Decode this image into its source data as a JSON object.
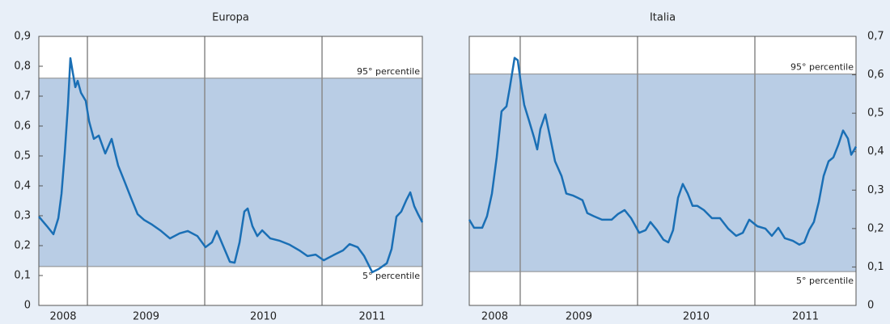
{
  "chart_data": [
    {
      "type": "line",
      "title": "Europa",
      "color": "#1a6fb5",
      "band_color": "#b9cde5",
      "yaxis_side": "left",
      "xlim": [
        2008.586,
        2011.855
      ],
      "xticks": [
        2008,
        2009,
        2010,
        2011
      ],
      "ylim": [
        0,
        0.9
      ],
      "yticks": [
        0,
        {
          "value": 0.1,
          "label": "0,1"
        },
        {
          "value": 0.2,
          "label": "0,2"
        },
        {
          "value": 0.3,
          "label": "0,3"
        },
        {
          "value": 0.4,
          "label": "0,4"
        },
        {
          "value": 0.5,
          "label": "0,5"
        },
        {
          "value": 0.6,
          "label": "0,6"
        },
        {
          "value": 0.7,
          "label": "0,7"
        },
        {
          "value": 0.8,
          "label": "0,8"
        },
        {
          "value": 0.9,
          "label": "0,9"
        }
      ],
      "percentiles": [
        {
          "value": 0.76,
          "label": "95° percentile"
        },
        {
          "value": 0.13,
          "label": "5° percentile"
        }
      ],
      "x": [
        2008.586,
        2008.655,
        2008.71,
        2008.752,
        2008.779,
        2008.807,
        2008.834,
        2008.855,
        2008.876,
        2008.897,
        2008.917,
        2008.945,
        2008.986,
        2009.014,
        2009.055,
        2009.097,
        2009.152,
        2009.207,
        2009.262,
        2009.317,
        2009.372,
        2009.428,
        2009.483,
        2009.552,
        2009.621,
        2009.703,
        2009.786,
        2009.855,
        2009.938,
        2010.007,
        2010.062,
        2010.103,
        2010.159,
        2010.214,
        2010.255,
        2010.297,
        2010.338,
        2010.366,
        2010.407,
        2010.448,
        2010.49,
        2010.559,
        2010.641,
        2010.724,
        2010.807,
        2010.876,
        2010.945,
        2011.014,
        2011.097,
        2011.179,
        2011.234,
        2011.303,
        2011.359,
        2011.428,
        2011.483,
        2011.552,
        2011.593,
        2011.634,
        2011.676,
        2011.717,
        2011.752,
        2011.786,
        2011.821,
        2011.855
      ],
      "values": [
        0.297,
        0.265,
        0.238,
        0.292,
        0.373,
        0.508,
        0.67,
        0.827,
        0.778,
        0.73,
        0.751,
        0.711,
        0.684,
        0.616,
        0.557,
        0.568,
        0.508,
        0.557,
        0.468,
        0.414,
        0.359,
        0.305,
        0.286,
        0.27,
        0.251,
        0.224,
        0.241,
        0.249,
        0.232,
        0.195,
        0.211,
        0.249,
        0.197,
        0.146,
        0.143,
        0.211,
        0.314,
        0.324,
        0.265,
        0.232,
        0.251,
        0.224,
        0.216,
        0.203,
        0.184,
        0.165,
        0.17,
        0.151,
        0.168,
        0.184,
        0.205,
        0.195,
        0.165,
        0.111,
        0.122,
        0.141,
        0.189,
        0.297,
        0.314,
        0.351,
        0.378,
        0.332,
        0.303,
        0.278
      ]
    },
    {
      "type": "line",
      "title": "Italia",
      "color": "#1a6fb5",
      "band_color": "#b9cde5",
      "yaxis_side": "right",
      "xlim": [
        2008.566,
        2011.862
      ],
      "xticks": [
        2008,
        2009,
        2010,
        2011
      ],
      "ylim": [
        0,
        0.7
      ],
      "yticks": [
        0,
        {
          "value": 0.1,
          "label": "0,1"
        },
        {
          "value": 0.2,
          "label": "0,2"
        },
        {
          "value": 0.3,
          "label": "0,3"
        },
        {
          "value": 0.4,
          "label": "0,4"
        },
        {
          "value": 0.5,
          "label": "0,5"
        },
        {
          "value": 0.6,
          "label": "0,6"
        },
        {
          "value": 0.7,
          "label": "0,7"
        }
      ],
      "percentiles": [
        {
          "value": 0.602,
          "label": "95° percentile"
        },
        {
          "value": 0.088,
          "label": "5° percentile"
        }
      ],
      "x": [
        2008.566,
        2008.607,
        2008.676,
        2008.717,
        2008.759,
        2008.8,
        2008.841,
        2008.883,
        2008.91,
        2008.952,
        2008.979,
        2009.007,
        2009.034,
        2009.076,
        2009.117,
        2009.145,
        2009.172,
        2009.214,
        2009.255,
        2009.297,
        2009.352,
        2009.393,
        2009.448,
        2009.49,
        2009.531,
        2009.572,
        2009.628,
        2009.697,
        2009.779,
        2009.834,
        2009.89,
        2009.945,
        2010.014,
        2010.069,
        2010.11,
        2010.166,
        2010.221,
        2010.262,
        2010.303,
        2010.345,
        2010.386,
        2010.428,
        2010.469,
        2010.51,
        2010.566,
        2010.634,
        2010.703,
        2010.772,
        2010.841,
        2010.897,
        2010.952,
        2011.021,
        2011.09,
        2011.145,
        2011.2,
        2011.255,
        2011.324,
        2011.379,
        2011.421,
        2011.462,
        2011.503,
        2011.545,
        2011.586,
        2011.628,
        2011.669,
        2011.71,
        2011.752,
        2011.793,
        2011.821,
        2011.862
      ],
      "values": [
        0.223,
        0.202,
        0.202,
        0.232,
        0.291,
        0.385,
        0.505,
        0.518,
        0.564,
        0.644,
        0.638,
        0.575,
        0.522,
        0.48,
        0.438,
        0.406,
        0.459,
        0.497,
        0.438,
        0.375,
        0.337,
        0.291,
        0.286,
        0.28,
        0.274,
        0.24,
        0.232,
        0.223,
        0.223,
        0.238,
        0.248,
        0.227,
        0.189,
        0.196,
        0.217,
        0.196,
        0.171,
        0.164,
        0.196,
        0.28,
        0.316,
        0.291,
        0.259,
        0.259,
        0.248,
        0.227,
        0.227,
        0.2,
        0.181,
        0.189,
        0.223,
        0.206,
        0.2,
        0.181,
        0.202,
        0.175,
        0.168,
        0.158,
        0.164,
        0.196,
        0.217,
        0.269,
        0.337,
        0.375,
        0.385,
        0.417,
        0.455,
        0.434,
        0.392,
        0.413
      ]
    }
  ]
}
